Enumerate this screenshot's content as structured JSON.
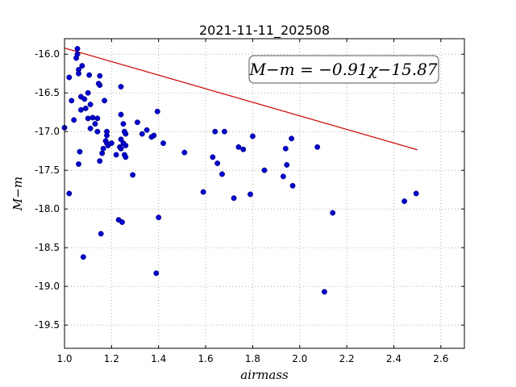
{
  "chart_data": {
    "type": "scatter",
    "title": "2021-11-11_202508",
    "xlabel": "airmass",
    "ylabel": "M−m",
    "xlim": [
      1.0,
      2.7
    ],
    "ylim": [
      -19.8,
      -15.8
    ],
    "y_inverted": true,
    "grid": true,
    "annotation": "M−m = −0.91χ−15.87",
    "x_ticks": [
      "1.0",
      "1.2",
      "1.4",
      "1.6",
      "1.8",
      "2.0",
      "2.2",
      "2.4",
      "2.6"
    ],
    "y_ticks": [
      "-16.0",
      "-16.5",
      "-17.0",
      "-17.5",
      "-18.0",
      "-18.5",
      "-19.0",
      "-19.5"
    ],
    "colors": {
      "points": "#0000cc",
      "fit": "#cc0000",
      "grid": "#b0b0b0"
    },
    "fit": {
      "slope": -0.91,
      "intercept": -15.87,
      "x_range": [
        1.0,
        2.5
      ]
    },
    "points": [
      [
        1.0,
        -16.95
      ],
      [
        1.02,
        -16.3
      ],
      [
        1.02,
        -17.8
      ],
      [
        1.03,
        -16.6
      ],
      [
        1.04,
        -16.85
      ],
      [
        1.05,
        -16.05
      ],
      [
        1.055,
        -15.93
      ],
      [
        1.055,
        -16.0
      ],
      [
        1.06,
        -16.2
      ],
      [
        1.06,
        -16.25
      ],
      [
        1.06,
        -17.42
      ],
      [
        1.065,
        -17.26
      ],
      [
        1.07,
        -16.55
      ],
      [
        1.07,
        -16.72
      ],
      [
        1.075,
        -16.15
      ],
      [
        1.08,
        -18.62
      ],
      [
        1.085,
        -16.58
      ],
      [
        1.09,
        -16.7
      ],
      [
        1.1,
        -16.83
      ],
      [
        1.1,
        -16.5
      ],
      [
        1.105,
        -16.27
      ],
      [
        1.11,
        -16.65
      ],
      [
        1.11,
        -16.96
      ],
      [
        1.12,
        -16.82
      ],
      [
        1.13,
        -16.9
      ],
      [
        1.14,
        -16.83
      ],
      [
        1.14,
        -17.0
      ],
      [
        1.145,
        -16.38
      ],
      [
        1.15,
        -16.4
      ],
      [
        1.15,
        -16.28
      ],
      [
        1.15,
        -17.38
      ],
      [
        1.155,
        -18.32
      ],
      [
        1.16,
        -17.28
      ],
      [
        1.165,
        -17.22
      ],
      [
        1.17,
        -16.6
      ],
      [
        1.175,
        -17.12
      ],
      [
        1.18,
        -17.0
      ],
      [
        1.18,
        -17.05
      ],
      [
        1.18,
        -17.15
      ],
      [
        1.185,
        -17.18
      ],
      [
        1.2,
        -17.15
      ],
      [
        1.22,
        -17.3
      ],
      [
        1.23,
        -18.14
      ],
      [
        1.235,
        -17.2
      ],
      [
        1.24,
        -16.42
      ],
      [
        1.24,
        -16.78
      ],
      [
        1.24,
        -17.1
      ],
      [
        1.24,
        -17.22
      ],
      [
        1.245,
        -18.17
      ],
      [
        1.25,
        -16.9
      ],
      [
        1.25,
        -17.15
      ],
      [
        1.255,
        -17.3
      ],
      [
        1.255,
        -17.0
      ],
      [
        1.26,
        -17.03
      ],
      [
        1.26,
        -17.33
      ],
      [
        1.26,
        -17.18
      ],
      [
        1.29,
        -17.56
      ],
      [
        1.31,
        -16.88
      ],
      [
        1.33,
        -17.03
      ],
      [
        1.35,
        -16.98
      ],
      [
        1.37,
        -17.07
      ],
      [
        1.38,
        -17.05
      ],
      [
        1.39,
        -18.83
      ],
      [
        1.395,
        -16.74
      ],
      [
        1.4,
        -18.11
      ],
      [
        1.42,
        -17.15
      ],
      [
        1.51,
        -17.27
      ],
      [
        1.59,
        -17.78
      ],
      [
        1.63,
        -17.33
      ],
      [
        1.64,
        -17.0
      ],
      [
        1.65,
        -17.41
      ],
      [
        1.67,
        -17.55
      ],
      [
        1.68,
        -17.0
      ],
      [
        1.72,
        -17.86
      ],
      [
        1.74,
        -17.2
      ],
      [
        1.76,
        -17.23
      ],
      [
        1.79,
        -17.81
      ],
      [
        1.8,
        -17.06
      ],
      [
        1.85,
        -17.5
      ],
      [
        1.93,
        -17.58
      ],
      [
        1.94,
        -17.22
      ],
      [
        1.945,
        -17.43
      ],
      [
        1.965,
        -17.09
      ],
      [
        1.97,
        -17.7
      ],
      [
        2.075,
        -17.2
      ],
      [
        2.105,
        -19.07
      ],
      [
        2.14,
        -18.05
      ],
      [
        2.445,
        -17.9
      ],
      [
        2.495,
        -17.8
      ]
    ]
  }
}
